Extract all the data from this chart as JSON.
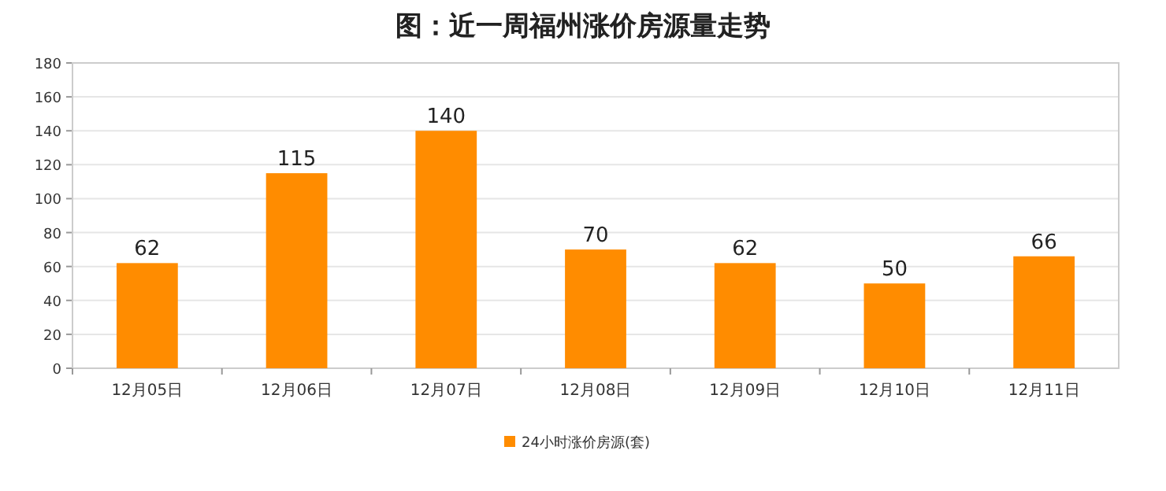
{
  "chart_data": {
    "type": "bar",
    "title": "图：近一周福州涨价房源量走势",
    "categories": [
      "12月05日",
      "12月06日",
      "12月07日",
      "12月08日",
      "12月09日",
      "12月10日",
      "12月11日"
    ],
    "series": [
      {
        "name": "24小时涨价房源(套)",
        "color": "#ff8c00",
        "values": [
          62,
          115,
          140,
          70,
          62,
          50,
          66
        ]
      }
    ],
    "ylim": [
      0,
      180
    ],
    "yticks": [
      0,
      20,
      40,
      60,
      80,
      100,
      120,
      140,
      160,
      180
    ],
    "grid": "y",
    "legend": "bottom",
    "data_labels": true
  }
}
